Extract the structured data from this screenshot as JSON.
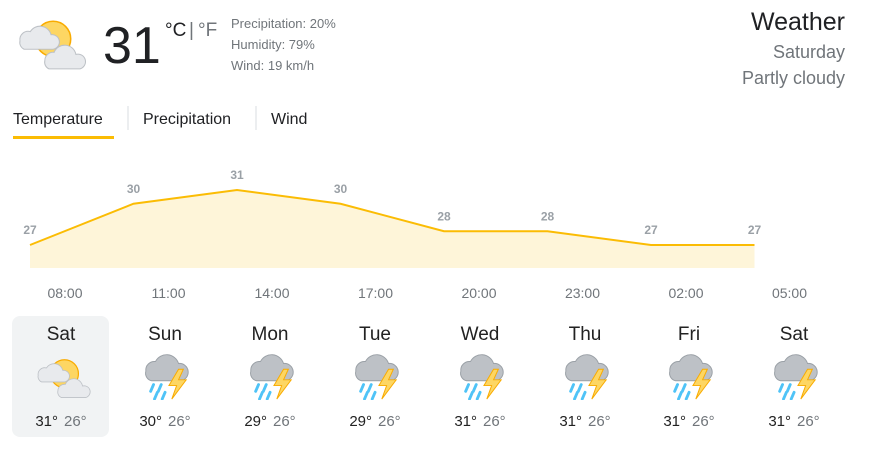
{
  "current": {
    "temperature": "31",
    "unit_c": "°C",
    "separator": "|",
    "unit_f": "°F",
    "precipitation": "Precipitation: 20%",
    "humidity": "Humidity: 79%",
    "wind": "Wind: 19 km/h"
  },
  "header": {
    "title": "Weather",
    "day": "Saturday",
    "condition": "Partly cloudy"
  },
  "tabs": [
    "Temperature",
    "Precipitation",
    "Wind"
  ],
  "chart_data": {
    "type": "line",
    "categories": [
      "08:00",
      "11:00",
      "14:00",
      "17:00",
      "20:00",
      "23:00",
      "02:00",
      "05:00"
    ],
    "values": [
      27,
      30,
      31,
      30,
      28,
      28,
      27,
      27
    ],
    "color": "#fbbc04",
    "fill": "#fef5d9"
  },
  "days": [
    {
      "name": "Sat",
      "high": "31°",
      "low": "26°"
    },
    {
      "name": "Sun",
      "high": "30°",
      "low": "26°"
    },
    {
      "name": "Mon",
      "high": "29°",
      "low": "26°"
    },
    {
      "name": "Tue",
      "high": "29°",
      "low": "26°"
    },
    {
      "name": "Wed",
      "high": "31°",
      "low": "26°"
    },
    {
      "name": "Thu",
      "high": "31°",
      "low": "26°"
    },
    {
      "name": "Fri",
      "high": "31°",
      "low": "26°"
    },
    {
      "name": "Sat",
      "high": "31°",
      "low": "26°"
    }
  ]
}
